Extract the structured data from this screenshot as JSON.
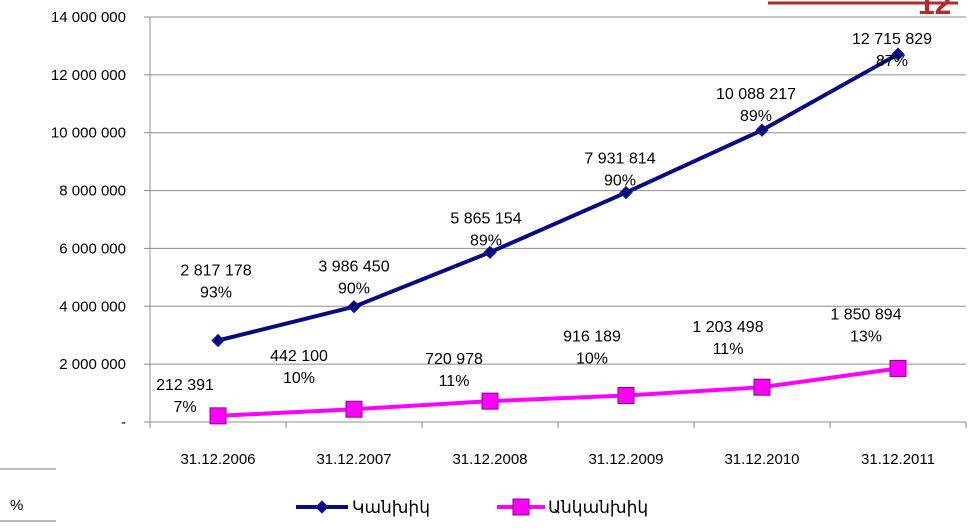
{
  "page": {
    "side_text": "%",
    "brand_mark": "12",
    "brand_color": "#b22a2a"
  },
  "chart_data": {
    "type": "line",
    "categories": [
      "31.12.2006",
      "31.12.2007",
      "31.12.2008",
      "31.12.2009",
      "31.12.2010",
      "31.12.2011"
    ],
    "y_ticks": [
      "-",
      "2 000 000",
      "4 000 000",
      "6 000 000",
      "8 000 000",
      "10 000 000",
      "12 000 000",
      "14 000 000"
    ],
    "ylim": [
      0,
      14000000
    ],
    "grid": true,
    "legend_position": "bottom",
    "series": [
      {
        "name": "Կանխիկ",
        "color": "#0a0a80",
        "marker": "diamond",
        "values": [
          2817178,
          3986450,
          5865154,
          7931814,
          10088217,
          12715829
        ],
        "value_labels": [
          "2 817 178",
          "3 986 450",
          "5 865 154",
          "7 931 814",
          "10 088 217",
          "12 715 829"
        ],
        "percent_labels": [
          "93%",
          "90%",
          "89%",
          "90%",
          "89%",
          "87%"
        ]
      },
      {
        "name": "Անկանխիկ",
        "color": "#ff00ff",
        "marker": "square",
        "values": [
          212391,
          442100,
          720978,
          916189,
          1203498,
          1850894
        ],
        "value_labels": [
          "212 391",
          "442 100",
          "720 978",
          "916 189",
          "1 203 498",
          "1 850 894"
        ],
        "percent_labels": [
          "7%",
          "10%",
          "11%",
          "10%",
          "11%",
          "13%"
        ]
      }
    ]
  }
}
